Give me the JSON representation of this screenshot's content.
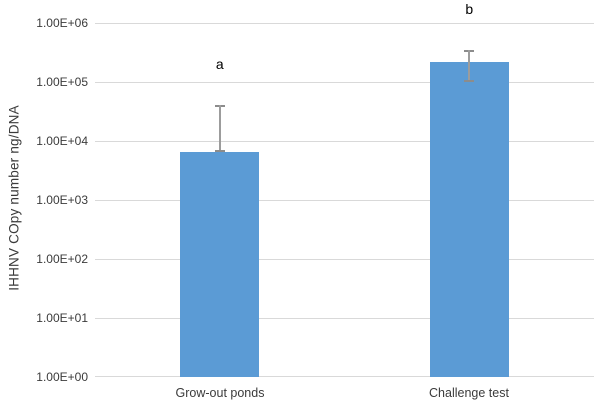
{
  "chart_data": {
    "type": "bar",
    "scale": "log",
    "title": "",
    "xlabel": "",
    "ylabel": "IHHNV COpy number ng/DNA",
    "categories": [
      "Grow-out ponds",
      "Challenge test"
    ],
    "values": [
      6500,
      220000
    ],
    "values_scientific": [
      "6.5E+03",
      "2.2E+05"
    ],
    "error_upper": [
      40000,
      350000
    ],
    "error_lower": [
      6500,
      100000
    ],
    "significance_labels": [
      "a",
      "b"
    ],
    "ytick_labels": [
      "1.00E+06",
      "1.00E+05",
      "1.00E+04",
      "1.00E+03",
      "1.00E+02",
      "1.00E+01",
      "1.00E+00"
    ],
    "ylim": [
      1,
      1000000
    ],
    "grid": true,
    "legend_position": "none",
    "colors": {
      "bar_fill": "#5b9bd5",
      "error_bar": "#9c9c9c",
      "gridline": "#d9d9d9",
      "axis_text": "#3b3b3b",
      "significance_text": "#000000"
    }
  }
}
